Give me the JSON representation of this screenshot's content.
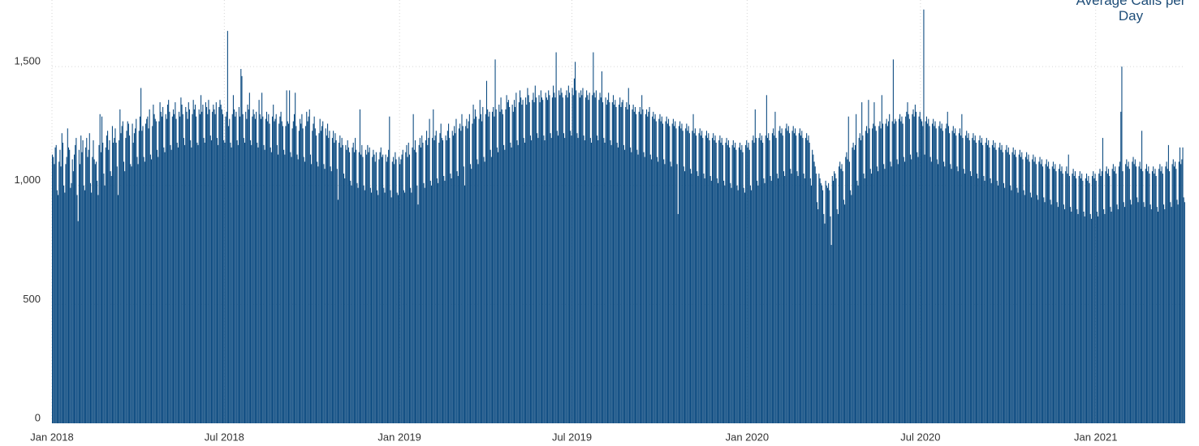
{
  "chart_data": {
    "type": "bar",
    "title": "Average Calls per Day",
    "color": "#0b4a80",
    "grid": true,
    "xlim": [
      0,
      1190
    ],
    "xticks": [
      {
        "value": 0,
        "label": "Jan 2018"
      },
      {
        "value": 181,
        "label": "Jul 2018"
      },
      {
        "value": 365,
        "label": "Jan 2019"
      },
      {
        "value": 546,
        "label": "Jul 2019"
      },
      {
        "value": 730,
        "label": "Jan 2020"
      },
      {
        "value": 912,
        "label": "Jul 2020"
      },
      {
        "value": 1096,
        "label": "Jan 2021"
      }
    ],
    "ylim": [
      0,
      1780
    ],
    "yticks": [
      0,
      500,
      {
        "value": 1000,
        "label": "1,000"
      },
      {
        "value": 1500,
        "label": "1,500"
      }
    ],
    "values": [
      1130,
      1120,
      1090,
      1160,
      1170,
      980,
      960,
      1100,
      1150,
      1080,
      1220,
      1180,
      1000,
      970,
      1090,
      1120,
      1240,
      1160,
      1150,
      990,
      1010,
      1110,
      1060,
      1130,
      1170,
      1200,
      960,
      850,
      1150,
      1090,
      1210,
      1140,
      1190,
      1000,
      980,
      1160,
      1200,
      1120,
      1150,
      1220,
      1010,
      970,
      1120,
      1190,
      1110,
      1090,
      1100,
      1020,
      960,
      1170,
      1300,
      1140,
      1290,
      1180,
      1050,
      1000,
      1160,
      1210,
      1230,
      1150,
      1190,
      1060,
      1040,
      1250,
      1180,
      1200,
      1240,
      1180,
      1080,
      960,
      1190,
      1320,
      1220,
      1250,
      1270,
      1100,
      1060,
      1200,
      1230,
      1270,
      1260,
      1210,
      1090,
      1080,
      1260,
      1180,
      1220,
      1240,
      1280,
      1120,
      1090,
      1230,
      1290,
      1410,
      1230,
      1250,
      1120,
      1100,
      1260,
      1280,
      1290,
      1240,
      1320,
      1130,
      1110,
      1250,
      1340,
      1300,
      1280,
      1270,
      1150,
      1120,
      1270,
      1350,
      1310,
      1290,
      1330,
      1160,
      1140,
      1300,
      1280,
      1340,
      1360,
      1310,
      1170,
      1150,
      1290,
      1320,
      1300,
      1350,
      1280,
      1180,
      1160,
      1310,
      1290,
      1370,
      1340,
      1300,
      1200,
      1170,
      1330,
      1310,
      1280,
      1350,
      1320,
      1190,
      1160,
      1300,
      1360,
      1320,
      1340,
      1290,
      1180,
      1170,
      1320,
      1300,
      1380,
      1310,
      1340,
      1200,
      1180,
      1350,
      1330,
      1300,
      1360,
      1320,
      1210,
      1190,
      1310,
      1340,
      1320,
      1300,
      1350,
      1200,
      1170,
      1330,
      1360,
      1340,
      1320,
      1300,
      1190,
      1180,
      1290,
      1310,
      1650,
      1250,
      1280,
      1180,
      1160,
      1300,
      1380,
      1320,
      1290,
      1310,
      1190,
      1170,
      1330,
      1290,
      1490,
      1460,
      1300,
      1200,
      1180,
      1310,
      1280,
      1340,
      1320,
      1390,
      1190,
      1170,
      1290,
      1320,
      1300,
      1280,
      1310,
      1180,
      1160,
      1360,
      1300,
      1280,
      1390,
      1290,
      1170,
      1150,
      1280,
      1310,
      1270,
      1300,
      1260,
      1160,
      1140,
      1290,
      1340,
      1270,
      1280,
      1300,
      1170,
      1130,
      1260,
      1290,
      1310,
      1270,
      1250,
      1150,
      1130,
      1250,
      1400,
      1270,
      1260,
      1400,
      1140,
      1120,
      1240,
      1270,
      1300,
      1390,
      1250,
      1130,
      1110,
      1230,
      1280,
      1260,
      1300,
      1240,
      1120,
      1100,
      1250,
      1310,
      1270,
      1290,
      1320,
      1130,
      1090,
      1230,
      1260,
      1290,
      1240,
      1210,
      1100,
      1080,
      1220,
      1280,
      1230,
      1250,
      1270,
      1090,
      1070,
      1240,
      1210,
      1260,
      1200,
      1230,
      1080,
      1060,
      1200,
      1230,
      1180,
      1220,
      1190,
      1070,
      940,
      1180,
      1210,
      1160,
      1200,
      1170,
      1050,
      1030,
      1170,
      1150,
      1190,
      1160,
      1140,
      1020,
      1000,
      1160,
      1180,
      1140,
      1200,
      1150,
      1010,
      990,
      1140,
      1320,
      1130,
      1170,
      1120,
      1000,
      980,
      1150,
      1130,
      1170,
      1140,
      1160,
      990,
      970,
      1120,
      1150,
      1130,
      1100,
      1140,
      980,
      960,
      1110,
      1140,
      1160,
      1120,
      1130,
      990,
      970,
      1130,
      1100,
      1120,
      1150,
      1290,
      980,
      950,
      1100,
      1120,
      1090,
      1140,
      1110,
      970,
      960,
      1120,
      1090,
      1110,
      1130,
      1150,
      980,
      970,
      1140,
      1170,
      1120,
      1180,
      1130,
      990,
      970,
      1160,
      1300,
      1150,
      1190,
      1140,
      1000,
      920,
      1170,
      1200,
      1160,
      1210,
      1180,
      1010,
      990,
      1190,
      1230,
      1170,
      1200,
      1280,
      1020,
      1000,
      1200,
      1320,
      1190,
      1210,
      1230,
      1030,
      1010,
      1180,
      1220,
      1260,
      1200,
      1190,
      1040,
      1020,
      1210,
      1190,
      1230,
      1260,
      1200,
      1050,
      1030,
      1230,
      1210,
      1250,
      1220,
      1280,
      1060,
      1040,
      1240,
      1260,
      1230,
      1300,
      1250,
      1080,
      1000,
      1250,
      1280,
      1240,
      1270,
      1300,
      1090,
      1070,
      1260,
      1340,
      1280,
      1320,
      1290,
      1110,
      1090,
      1280,
      1360,
      1300,
      1270,
      1330,
      1120,
      1100,
      1300,
      1440,
      1320,
      1290,
      1310,
      1150,
      1120,
      1310,
      1330,
      1290,
      1530,
      1320,
      1160,
      1140,
      1340,
      1310,
      1370,
      1320,
      1300,
      1170,
      1150,
      1320,
      1380,
      1350,
      1360,
      1330,
      1180,
      1160,
      1340,
      1310,
      1360,
      1330,
      1390,
      1190,
      1170,
      1350,
      1400,
      1370,
      1340,
      1360,
      1200,
      1180,
      1370,
      1340,
      1410,
      1380,
      1350,
      1210,
      1190,
      1360,
      1390,
      1350,
      1420,
      1370,
      1220,
      1200,
      1380,
      1350,
      1400,
      1370,
      1360,
      1210,
      1190,
      1390,
      1370,
      1360,
      1400,
      1380,
      1220,
      1200,
      1370,
      1420,
      1390,
      1370,
      1560,
      1230,
      1210,
      1400,
      1380,
      1410,
      1390,
      1370,
      1220,
      1200,
      1380,
      1400,
      1370,
      1420,
      1390,
      1230,
      1210,
      1410,
      1380,
      1450,
      1520,
      1400,
      1220,
      1200,
      1390,
      1370,
      1400,
      1380,
      1410,
      1210,
      1190,
      1370,
      1400,
      1380,
      1360,
      1390,
      1200,
      1180,
      1380,
      1560,
      1390,
      1370,
      1400,
      1210,
      1190,
      1360,
      1390,
      1370,
      1480,
      1350,
      1200,
      1180,
      1370,
      1340,
      1360,
      1390,
      1350,
      1190,
      1170,
      1350,
      1380,
      1340,
      1360,
      1330,
      1180,
      1160,
      1340,
      1370,
      1330,
      1350,
      1360,
      1170,
      1150,
      1330,
      1350,
      1320,
      1410,
      1340,
      1160,
      1140,
      1320,
      1340,
      1310,
      1330,
      1300,
      1150,
      1130,
      1310,
      1330,
      1300,
      1380,
      1320,
      1140,
      1120,
      1300,
      1320,
      1290,
      1310,
      1330,
      1130,
      1110,
      1290,
      1310,
      1280,
      1300,
      1270,
      1120,
      1100,
      1280,
      1300,
      1270,
      1290,
      1260,
      1110,
      1090,
      1270,
      1290,
      1260,
      1280,
      1250,
      1100,
      1080,
      1260,
      1280,
      1250,
      1270,
      1240,
      1090,
      880,
      1250,
      1270,
      1240,
      1260,
      1230,
      1080,
      1060,
      1240,
      1260,
      1230,
      1250,
      1220,
      1070,
      1050,
      1230,
      1300,
      1220,
      1240,
      1210,
      1060,
      1040,
      1220,
      1240,
      1210,
      1230,
      1200,
      1050,
      1030,
      1210,
      1230,
      1200,
      1220,
      1190,
      1040,
      1020,
      1200,
      1220,
      1190,
      1210,
      1180,
      1030,
      1010,
      1190,
      1210,
      1180,
      1200,
      1170,
      1020,
      1000,
      1180,
      1200,
      1170,
      1190,
      1160,
      1010,
      990,
      1170,
      1190,
      1160,
      1180,
      1150,
      1000,
      980,
      1160,
      1180,
      1150,
      1170,
      1140,
      990,
      970,
      1170,
      1190,
      1160,
      1180,
      1150,
      1000,
      980,
      1190,
      1210,
      1180,
      1320,
      1200,
      1020,
      1000,
      1200,
      1220,
      1190,
      1210,
      1180,
      1030,
      1010,
      1210,
      1380,
      1200,
      1220,
      1190,
      1040,
      1020,
      1220,
      1240,
      1210,
      1310,
      1200,
      1050,
      1030,
      1230,
      1250,
      1220,
      1240,
      1210,
      1060,
      1040,
      1240,
      1260,
      1230,
      1250,
      1220,
      1070,
      1050,
      1230,
      1250,
      1220,
      1240,
      1210,
      1060,
      1040,
      1220,
      1240,
      1210,
      1230,
      1200,
      1050,
      1030,
      1200,
      1220,
      1190,
      1210,
      1180,
      1030,
      1000,
      1150,
      1130,
      1100,
      1080,
      1050,
      930,
      900,
      1050,
      1030,
      1010,
      1000,
      980,
      880,
      840,
      1020,
      1000,
      990,
      1010,
      980,
      870,
      750,
      1040,
      1020,
      1060,
      1050,
      1030,
      900,
      880,
      1080,
      1100,
      1070,
      1090,
      1060,
      940,
      920,
      1120,
      1140,
      1110,
      1290,
      1100,
      980,
      960,
      1160,
      1180,
      1150,
      1170,
      1300,
      1020,
      1000,
      1200,
      1220,
      1190,
      1350,
      1210,
      1050,
      1030,
      1230,
      1250,
      1220,
      1360,
      1240,
      1070,
      1050,
      1240,
      1260,
      1350,
      1250,
      1230,
      1080,
      1060,
      1250,
      1270,
      1240,
      1380,
      1260,
      1090,
      1070,
      1260,
      1280,
      1250,
      1270,
      1300,
      1100,
      1080,
      1270,
      1530,
      1260,
      1280,
      1270,
      1110,
      1090,
      1280,
      1300,
      1270,
      1290,
      1260,
      1120,
      1100,
      1290,
      1310,
      1350,
      1300,
      1280,
      1130,
      1110,
      1300,
      1320,
      1290,
      1340,
      1310,
      1140,
      1120,
      1290,
      1310,
      1280,
      1270,
      1250,
      1740,
      1130,
      1270,
      1290,
      1260,
      1280,
      1250,
      1120,
      1100,
      1260,
      1280,
      1250,
      1270,
      1240,
      1110,
      1090,
      1250,
      1270,
      1240,
      1260,
      1230,
      1100,
      1080,
      1240,
      1260,
      1310,
      1250,
      1220,
      1090,
      1070,
      1230,
      1250,
      1220,
      1240,
      1210,
      1080,
      1060,
      1220,
      1240,
      1210,
      1300,
      1200,
      1070,
      1050,
      1210,
      1230,
      1200,
      1220,
      1190,
      1060,
      1040,
      1200,
      1220,
      1190,
      1210,
      1180,
      1050,
      1030,
      1190,
      1210,
      1180,
      1200,
      1170,
      1040,
      1020,
      1180,
      1200,
      1170,
      1190,
      1160,
      1030,
      1010,
      1170,
      1190,
      1160,
      1180,
      1150,
      1020,
      1000,
      1160,
      1180,
      1150,
      1170,
      1140,
      1010,
      990,
      1150,
      1170,
      1140,
      1160,
      1130,
      1000,
      980,
      1140,
      1160,
      1130,
      1150,
      1120,
      990,
      970,
      1130,
      1150,
      1120,
      1140,
      1110,
      980,
      960,
      1120,
      1140,
      1110,
      1130,
      1100,
      970,
      950,
      1110,
      1130,
      1100,
      1120,
      1090,
      960,
      940,
      1100,
      1120,
      1090,
      1110,
      1080,
      950,
      930,
      1090,
      1110,
      1080,
      1100,
      1070,
      940,
      920,
      1080,
      1100,
      1070,
      1090,
      1060,
      930,
      910,
      1070,
      1090,
      1060,
      1080,
      1050,
      920,
      900,
      1060,
      1080,
      1050,
      1130,
      1040,
      910,
      890,
      1050,
      1070,
      1040,
      1060,
      1030,
      900,
      880,
      1040,
      1060,
      1030,
      1050,
      1020,
      890,
      870,
      1030,
      1050,
      1020,
      1040,
      1010,
      880,
      860,
      1040,
      1060,
      1030,
      1050,
      1020,
      890,
      870,
      1050,
      1070,
      1040,
      1060,
      1200,
      900,
      880,
      1060,
      1080,
      1050,
      1070,
      1040,
      910,
      890,
      1070,
      1090,
      1060,
      1080,
      1050,
      920,
      900,
      1080,
      1100,
      1310,
      1500,
      1060,
      930,
      910,
      1090,
      1110,
      1080,
      1100,
      1070,
      940,
      920,
      1100,
      1120,
      1090,
      1110,
      1080,
      950,
      930,
      1080,
      1100,
      1070,
      1230,
      1060,
      930,
      910,
      1070,
      1090,
      1060,
      1080,
      1050,
      920,
      900,
      1060,
      1080,
      1050,
      1070,
      1040,
      910,
      890,
      1070,
      1090,
      1060,
      1080,
      1050,
      920,
      900,
      1080,
      1100,
      1070,
      1170,
      1060,
      930,
      910,
      1090,
      1110,
      1080,
      1100,
      1070,
      940,
      920,
      1100,
      1160,
      1090,
      1110,
      1160,
      950,
      930
    ]
  }
}
